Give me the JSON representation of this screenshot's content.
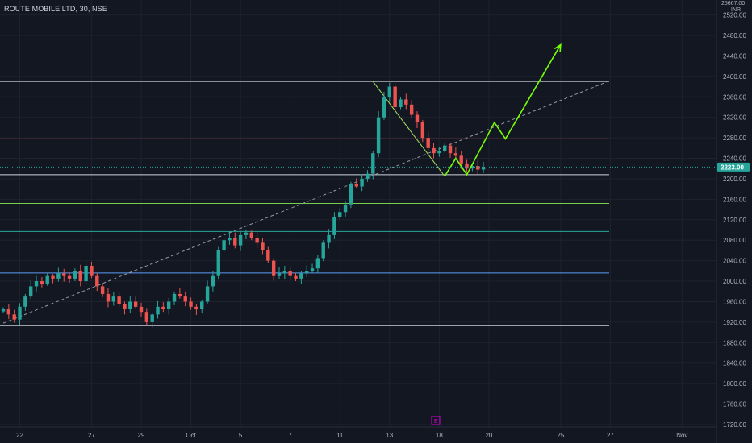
{
  "header": {
    "title": "ROUTE MOBILE LTD, 30, NSE"
  },
  "axis": {
    "currency": "INR",
    "top_partial": "25667.00"
  },
  "last_price": {
    "value": 2223,
    "label": "2223.00",
    "color": "#26a69a"
  },
  "event_marker": {
    "label": "E",
    "color": "#d400d4"
  },
  "chart_data": {
    "type": "candlestick",
    "y_range": [
      1705,
      2560
    ],
    "y_ticks": [
      1720,
      1760,
      1800,
      1840,
      1880,
      1920,
      1960,
      2000,
      2040,
      2080,
      2120,
      2160,
      2200,
      2240,
      2280,
      2320,
      2360,
      2400,
      2440,
      2480,
      2520
    ],
    "y_tick_labels": [
      "1720.00",
      "1760.00",
      "1800.00",
      "1840.00",
      "1880.00",
      "1920.00",
      "1960.00",
      "2000.00",
      "2040.00",
      "2080.00",
      "2120.00",
      "2160.00",
      "2200.00",
      "2240.00",
      "2280.00",
      "2320.00",
      "2360.00",
      "2400.00",
      "2440.00",
      "2480.00",
      "2520.00"
    ],
    "x_ticks": [
      {
        "label": "22",
        "t": 3
      },
      {
        "label": "27",
        "t": 16
      },
      {
        "label": "29",
        "t": 25
      },
      {
        "label": "Oct",
        "t": 34
      },
      {
        "label": "5",
        "t": 43
      },
      {
        "label": "7",
        "t": 52
      },
      {
        "label": "11",
        "t": 61
      },
      {
        "label": "13",
        "t": 70
      },
      {
        "label": "18",
        "t": 79
      },
      {
        "label": "20",
        "t": 88
      },
      {
        "label": "25",
        "t": 101
      },
      {
        "label": "27",
        "t": 110
      },
      {
        "label": "Nov",
        "t": 123
      }
    ],
    "closes": [
      1945,
      1935,
      1925,
      1950,
      1970,
      1990,
      2000,
      1995,
      2010,
      2005,
      2015,
      2010,
      2005,
      2020,
      2000,
      2030,
      2010,
      1990,
      1975,
      1960,
      1970,
      1955,
      1945,
      1960,
      1950,
      1940,
      1920,
      1935,
      1950,
      1945,
      1960,
      1975,
      1970,
      1960,
      1950,
      1945,
      1960,
      1990,
      2010,
      2060,
      2080,
      2085,
      2070,
      2090,
      2095,
      2085,
      2075,
      2060,
      2040,
      2010,
      2015,
      2020,
      2010,
      2005,
      2015,
      2020,
      2025,
      2045,
      2075,
      2090,
      2125,
      2135,
      2150,
      2190,
      2185,
      2200,
      2210,
      2250,
      2320,
      2360,
      2380,
      2340,
      2355,
      2345,
      2325,
      2310,
      2280,
      2260,
      2250,
      2255,
      2265,
      2250,
      2245,
      2230,
      2220,
      2225,
      2218,
      2223
    ],
    "horizontal_levels": [
      {
        "price": 2390,
        "color": "#b2b5be"
      },
      {
        "price": 2278,
        "color": "#ef5350"
      },
      {
        "price": 2208,
        "color": "#d1d4dc"
      },
      {
        "price": 2152,
        "color": "#76d14a"
      },
      {
        "price": 2097,
        "color": "#26a69a"
      },
      {
        "price": 2016,
        "color": "#5b9cf6"
      },
      {
        "price": 1913,
        "color": "#b2b5be"
      }
    ],
    "trendline_dashed": {
      "from": {
        "t": 0,
        "p": 1918
      },
      "to": {
        "t": 110,
        "p": 2392
      },
      "color": "#9598a1"
    },
    "trendline_down": {
      "from": {
        "t": 67,
        "p": 2390
      },
      "to": {
        "t": 80,
        "p": 2205
      },
      "color": "#a8e05f"
    },
    "projection": {
      "color": "#76ff03",
      "points": [
        {
          "t": 80,
          "p": 2205
        },
        {
          "t": 82,
          "p": 2240
        },
        {
          "t": 84,
          "p": 2208
        },
        {
          "t": 89,
          "p": 2310
        },
        {
          "t": 91,
          "p": 2278
        },
        {
          "t": 101,
          "p": 2462
        }
      ]
    }
  }
}
